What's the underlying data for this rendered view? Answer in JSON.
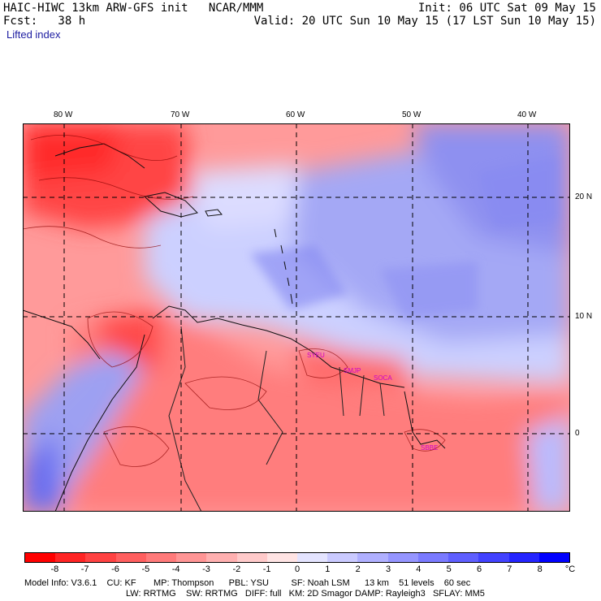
{
  "header": {
    "line1_left": "HAIC-HIWC 13km ARW-GFS init   NCAR/MMM",
    "line1_right": "Init: 06 UTC Sat 09 May 15",
    "line2_left": "Fcst:   38 h",
    "line2_right": "Valid: 20 UTC Sun 10 May 15 (17 LST Sun 10 May 15)",
    "field": "Lifted index"
  },
  "map": {
    "lon_labels": [
      "80 W",
      "70 W",
      "60 W",
      "50 W",
      "40 W"
    ],
    "lat_labels": [
      "20 N",
      "10 N",
      "0"
    ],
    "stations": [
      "SYEU",
      "SMJP",
      "SOCA",
      "SBBE"
    ]
  },
  "colorbar": {
    "ticks": [
      "-8",
      "-7",
      "-6",
      "-5",
      "-4",
      "-3",
      "-2",
      "-1",
      "0",
      "1",
      "2",
      "3",
      "4",
      "5",
      "6",
      "7",
      "8"
    ],
    "unit": "°C",
    "colors": [
      "#ff0000",
      "#ff2424",
      "#ff4242",
      "#ff5f5f",
      "#ff7a7a",
      "#ff9595",
      "#ffb0b0",
      "#ffcaca",
      "#ffe4e4",
      "#e4e4ff",
      "#cacaff",
      "#b0b0ff",
      "#9595ff",
      "#7a7aff",
      "#5f5fff",
      "#4242ff",
      "#2424ff",
      "#0000ff"
    ]
  },
  "footer": {
    "line1": "Model Info: V3.6.1    CU: KF       MP: Thompson      PBL: YSU         SF: Noah LSM      13 km    51 levels    60 sec",
    "line2": "LW: RRTMG    SW: RRTMG   DIFF: full   KM: 2D Smagor DAMP: Rayleigh3   SFLAY: MM5"
  }
}
